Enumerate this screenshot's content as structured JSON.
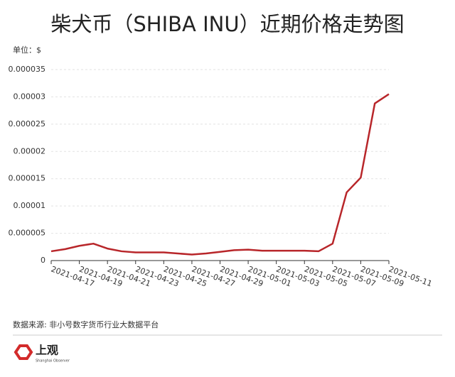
{
  "chart_data": {
    "type": "line",
    "title": "柴犬币（SHIBA INU）近期价格走势图",
    "unit_label": "单位：$",
    "source": "数据来源: 非小号数字货币行业大数据平台",
    "categories": [
      "2021-04-17",
      null,
      "2021-04-19",
      null,
      "2021-04-21",
      null,
      "2021-04-23",
      null,
      "2021-04-25",
      null,
      "2021-04-27",
      null,
      "2021-04-29",
      null,
      "2021-05-01",
      null,
      "2021-05-03",
      null,
      "2021-05-05",
      null,
      "2021-05-07",
      null,
      "2021-05-09",
      null,
      "2021-05-11"
    ],
    "values": [
      1.7e-06,
      2.1e-06,
      2.7e-06,
      3.1e-06,
      2.2e-06,
      1.7e-06,
      1.5e-06,
      1.5e-06,
      1.5e-06,
      1.3e-06,
      1.1e-06,
      1.3e-06,
      1.6e-06,
      1.9e-06,
      2e-06,
      1.8e-06,
      1.8e-06,
      1.8e-06,
      1.8e-06,
      1.7e-06,
      3.1e-06,
      1.25e-05,
      1.52e-05,
      2.88e-05,
      3.05e-05
    ],
    "color": "#b8262a",
    "ylim": [
      0,
      3.5e-05
    ],
    "yticks": [
      0,
      5e-06,
      1e-05,
      1.5e-05,
      2e-05,
      2.5e-05,
      3e-05,
      3.5e-05
    ],
    "grid": true
  },
  "logo": {
    "name": "上观",
    "subtitle": "Shanghai Observer"
  }
}
